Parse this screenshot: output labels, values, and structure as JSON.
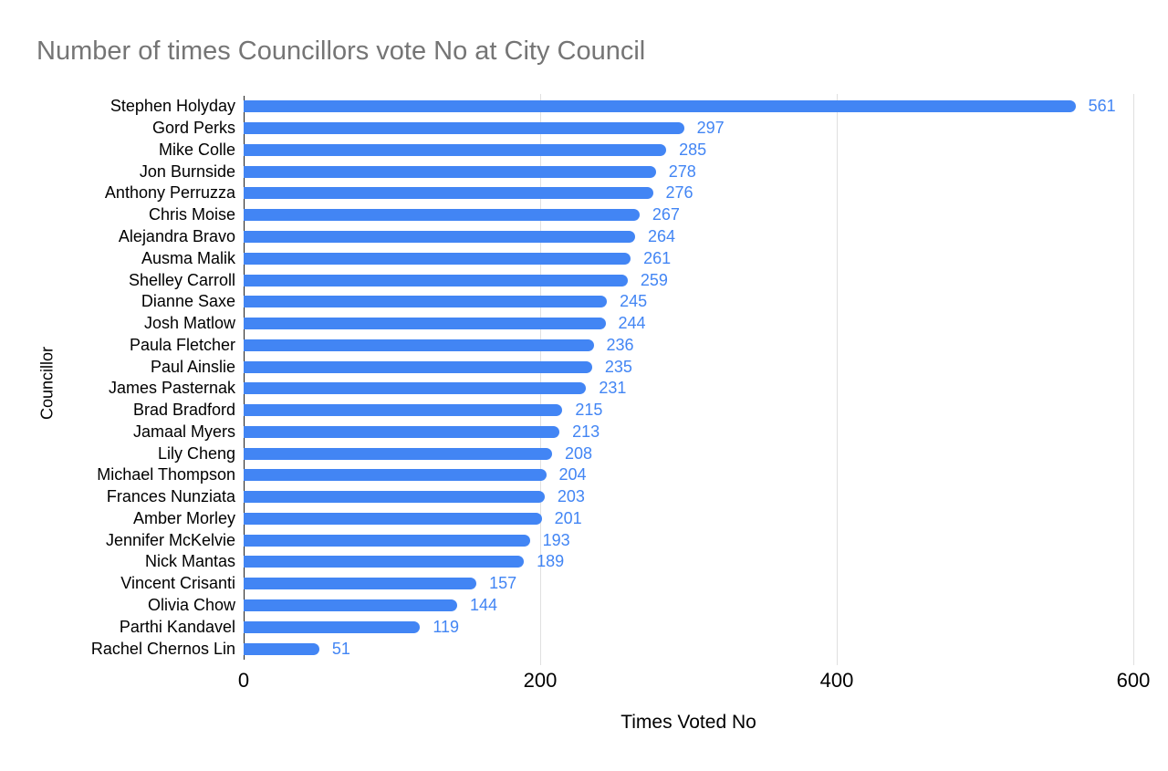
{
  "chart_data": {
    "type": "bar",
    "orientation": "horizontal",
    "title": "Number of times Councillors vote No at City Council",
    "xlabel": "Times Voted No",
    "ylabel": "Councillor",
    "xlim": [
      0,
      600
    ],
    "xticks": [
      0,
      200,
      400,
      600
    ],
    "grid": true,
    "legend": "none",
    "background_color": "#ffffff",
    "bar_color": "#4285f4",
    "value_label_color": "#4285f4",
    "title_color": "#757575",
    "gridline_color": "#e0e0e0",
    "categories": [
      "Stephen Holyday",
      "Gord Perks",
      "Mike Colle",
      "Jon Burnside",
      "Anthony Perruzza",
      "Chris Moise",
      "Alejandra Bravo",
      "Ausma Malik",
      "Shelley Carroll",
      "Dianne Saxe",
      "Josh Matlow",
      "Paula Fletcher",
      "Paul Ainslie",
      "James Pasternak",
      "Brad Bradford",
      "Jamaal Myers",
      "Lily Cheng",
      "Michael Thompson",
      "Frances Nunziata",
      "Amber Morley",
      "Jennifer McKelvie",
      "Nick Mantas",
      "Vincent Crisanti",
      "Olivia Chow",
      "Parthi Kandavel",
      "Rachel Chernos Lin"
    ],
    "values": [
      561,
      297,
      285,
      278,
      276,
      267,
      264,
      261,
      259,
      245,
      244,
      236,
      235,
      231,
      215,
      213,
      208,
      204,
      203,
      201,
      193,
      189,
      157,
      144,
      119,
      51
    ]
  }
}
